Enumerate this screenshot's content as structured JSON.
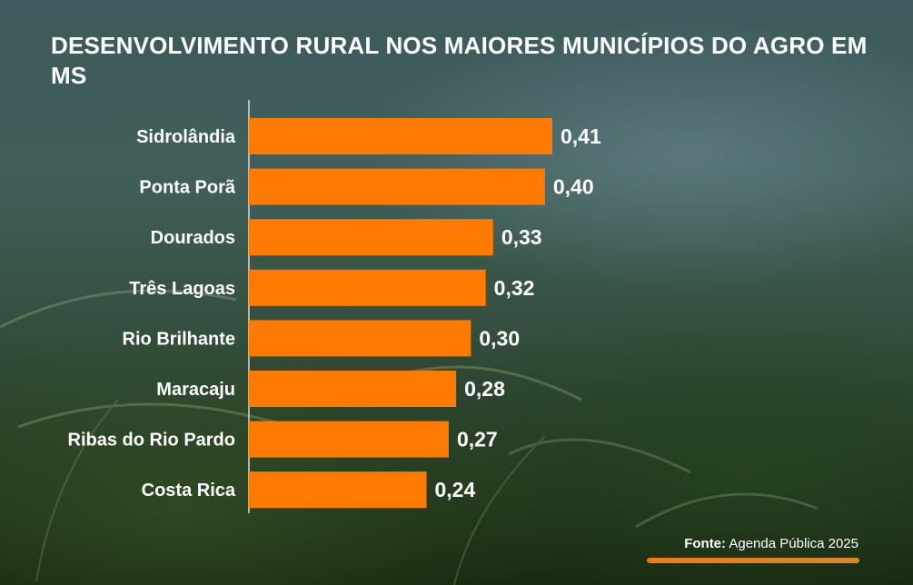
{
  "title": "DESENVOLVIMENTO RURAL NOS MAIORES MUNICÍPIOS DO AGRO EM MS",
  "source": {
    "label": "Fonte:",
    "text": " Agenda Pública 2025"
  },
  "colors": {
    "bar": "#ff7a00",
    "text": "#ffffff",
    "axis": "#d8d8d8"
  },
  "chart_data": {
    "type": "bar",
    "orientation": "horizontal",
    "title": "DESENVOLVIMENTO RURAL NOS MAIORES MUNICÍPIOS DO AGRO EM MS",
    "categories": [
      "Sidrolândia",
      "Ponta Porã",
      "Dourados",
      "Três Lagoas",
      "Rio Brilhante",
      "Maracaju",
      "Ribas do Rio Pardo",
      "Costa Rica"
    ],
    "values": [
      0.41,
      0.4,
      0.33,
      0.32,
      0.3,
      0.28,
      0.27,
      0.24
    ],
    "value_labels": [
      "0,41",
      "0,40",
      "0,33",
      "0,32",
      "0,30",
      "0,28",
      "0,27",
      "0,24"
    ],
    "xlim": [
      0,
      0.41
    ],
    "grid": false,
    "legend": "none"
  }
}
